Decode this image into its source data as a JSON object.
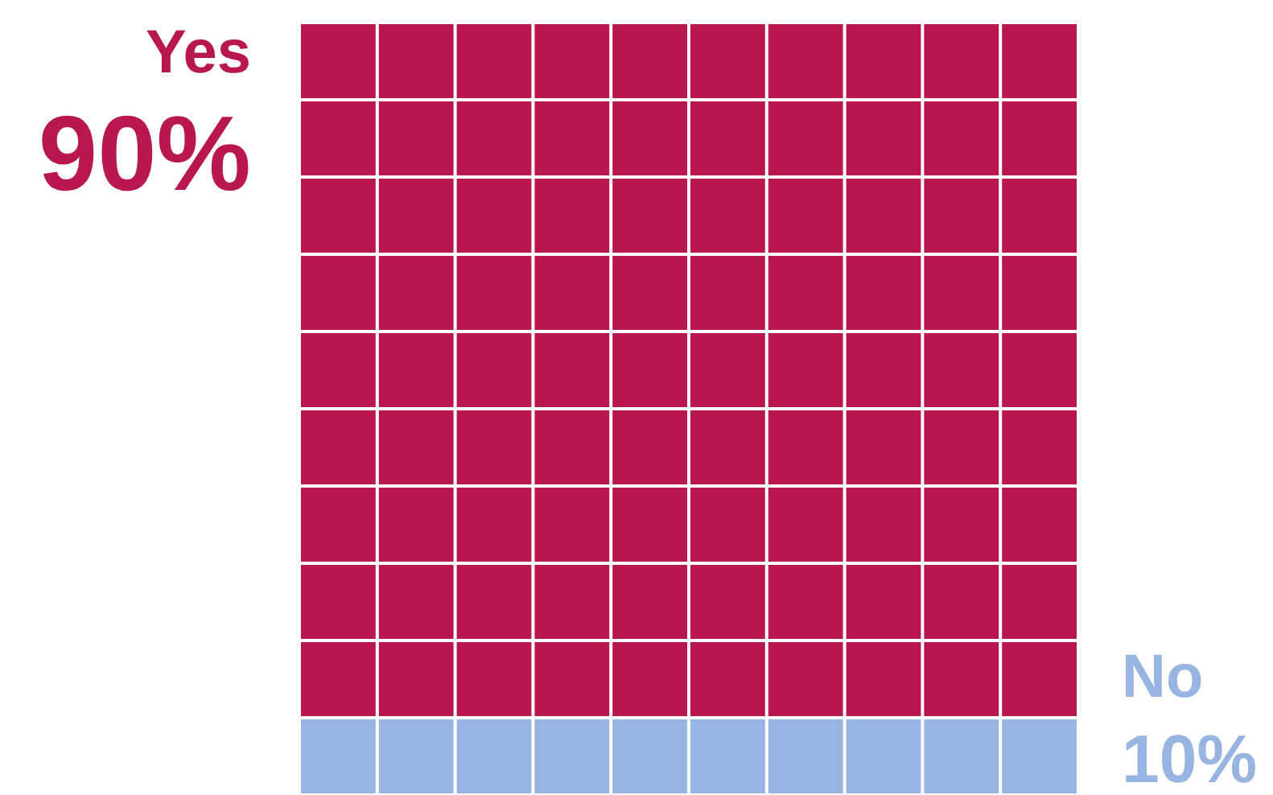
{
  "chart_data": {
    "type": "other",
    "categories": [
      "Yes",
      "No"
    ],
    "values": [
      90,
      10
    ],
    "colors": [
      "#b8174f",
      "#98b4e0"
    ],
    "value_labels": [
      "90%",
      "10%"
    ]
  }
}
